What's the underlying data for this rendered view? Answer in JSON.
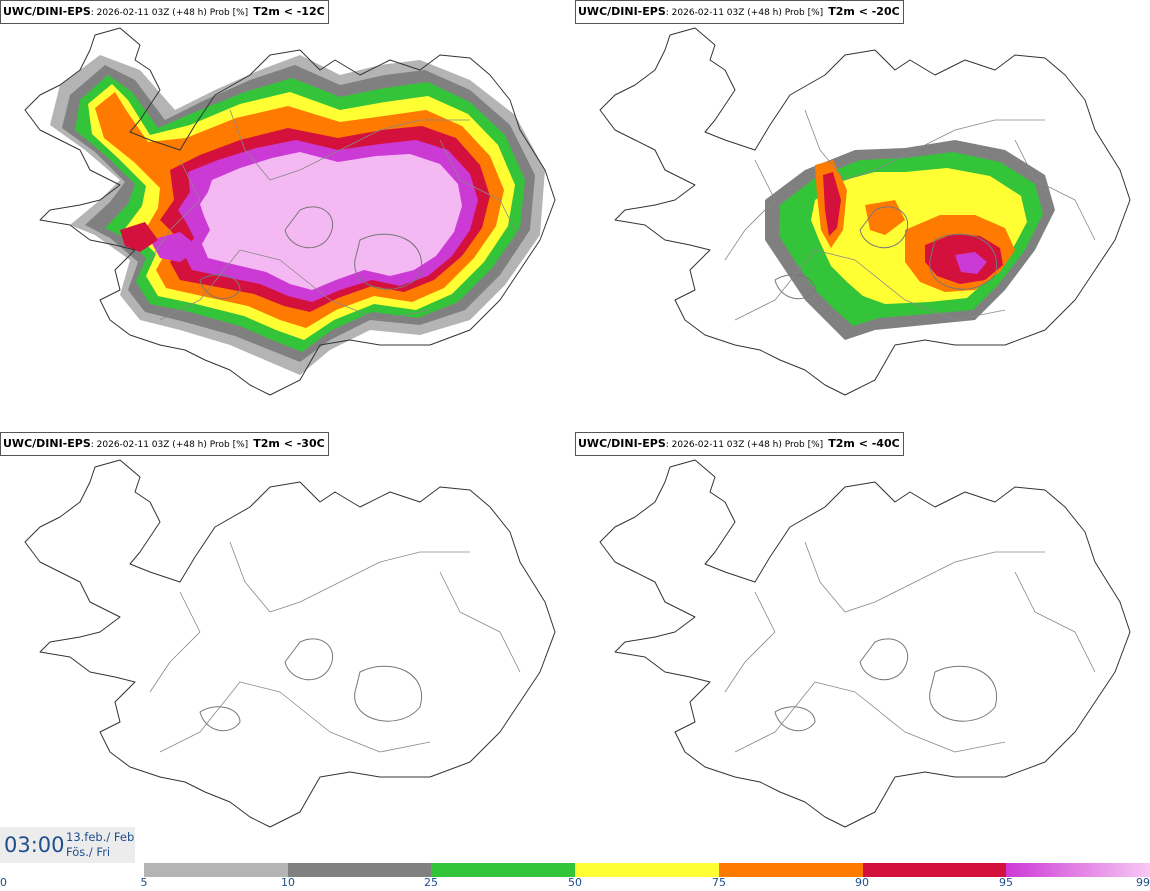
{
  "panels": [
    {
      "model": "UWC/DINI-EPS",
      "meta": ": 2026-02-11 03Z (+48 h) Prob [%]",
      "var": "T2m < -12C"
    },
    {
      "model": "UWC/DINI-EPS",
      "meta": ": 2026-02-11 03Z (+48 h) Prob [%]",
      "var": "T2m < -20C"
    },
    {
      "model": "UWC/DINI-EPS",
      "meta": ": 2026-02-11 03Z (+48 h) Prob [%]",
      "var": "T2m < -30C"
    },
    {
      "model": "UWC/DINI-EPS",
      "meta": ": 2026-02-11 03Z (+48 h) Prob [%]",
      "var": "T2m < -40C"
    }
  ],
  "valid_time": {
    "time": "03:00",
    "date_line1": "13.feb./ Feb",
    "date_line2": "Fös./ Fri"
  },
  "colorbar": {
    "ticks": [
      "0",
      "5",
      "10",
      "25",
      "50",
      "75",
      "90",
      "95",
      "99"
    ],
    "colors": [
      "#b4b4b4",
      "#808080",
      "#33c43a",
      "#ffff33",
      "#ff7a00",
      "#d4103c",
      "#cc3ad6"
    ]
  }
}
